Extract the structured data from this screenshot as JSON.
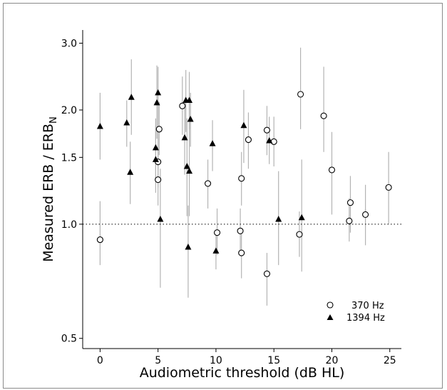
{
  "chart_data": {
    "type": "scatter",
    "xlabel": "Audiometric threshold (dB HL)",
    "ylabel": "Measured ERB / ERB",
    "ylabel_subscript": "N",
    "xlim": [
      -1.5,
      26
    ],
    "ylim": [
      0.47,
      3.25
    ],
    "y_scale": "log",
    "x_ticks": [
      0,
      5,
      10,
      15,
      20,
      25
    ],
    "y_ticks": [
      0.5,
      1.0,
      1.5,
      2.0,
      3.0
    ],
    "x_tick_labels": [
      "0",
      "5",
      "10",
      "15",
      "20",
      "25"
    ],
    "y_tick_labels": [
      "0.5",
      "1.0",
      "1.5",
      "2.0",
      "3.0"
    ],
    "reference_line": {
      "y": 1.0,
      "style": "dotted"
    },
    "legend_position": "lower-right",
    "series": [
      {
        "name": "370 Hz",
        "marker": "open-circle",
        "color": "#000000",
        "points": [
          {
            "x": 0.0,
            "y": 0.91,
            "lo": 0.78,
            "hi": 1.15
          },
          {
            "x": 5.0,
            "y": 1.46,
            "lo": 1.25,
            "hi": 1.75
          },
          {
            "x": 5.0,
            "y": 1.31,
            "lo": 1.12,
            "hi": 1.55
          },
          {
            "x": 5.1,
            "y": 1.78,
            "lo": 1.52,
            "hi": 2.1
          },
          {
            "x": 7.1,
            "y": 2.05,
            "lo": 1.72,
            "hi": 2.45
          },
          {
            "x": 9.3,
            "y": 1.28,
            "lo": 1.1,
            "hi": 1.48
          },
          {
            "x": 10.1,
            "y": 0.95,
            "lo": 0.83,
            "hi": 1.1
          },
          {
            "x": 12.1,
            "y": 0.96,
            "lo": 0.85,
            "hi": 1.1
          },
          {
            "x": 12.2,
            "y": 0.84,
            "lo": 0.72,
            "hi": 0.97
          },
          {
            "x": 12.2,
            "y": 1.32,
            "lo": 1.12,
            "hi": 1.55
          },
          {
            "x": 12.8,
            "y": 1.67,
            "lo": 1.4,
            "hi": 1.97
          },
          {
            "x": 14.4,
            "y": 1.77,
            "lo": 1.52,
            "hi": 2.05
          },
          {
            "x": 14.4,
            "y": 0.74,
            "lo": 0.61,
            "hi": 0.84
          },
          {
            "x": 15.0,
            "y": 1.65,
            "lo": 1.42,
            "hi": 1.92
          },
          {
            "x": 17.2,
            "y": 0.94,
            "lo": 0.82,
            "hi": 1.08
          },
          {
            "x": 17.3,
            "y": 2.2,
            "lo": 1.78,
            "hi": 2.92
          },
          {
            "x": 19.3,
            "y": 1.93,
            "lo": 1.55,
            "hi": 2.6
          },
          {
            "x": 20.0,
            "y": 1.39,
            "lo": 1.06,
            "hi": 1.75
          },
          {
            "x": 21.5,
            "y": 1.02,
            "lo": 0.9,
            "hi": 1.17
          },
          {
            "x": 21.6,
            "y": 1.14,
            "lo": 0.95,
            "hi": 1.34
          },
          {
            "x": 22.9,
            "y": 1.06,
            "lo": 0.88,
            "hi": 1.27
          },
          {
            "x": 24.9,
            "y": 1.25,
            "lo": 1.0,
            "hi": 1.55
          }
        ]
      },
      {
        "name": "1394 Hz",
        "marker": "filled-triangle",
        "color": "#000000",
        "points": [
          {
            "x": 0.0,
            "y": 1.81,
            "lo": 1.48,
            "hi": 2.22
          },
          {
            "x": 2.3,
            "y": 1.85,
            "lo": 1.6,
            "hi": 2.12
          },
          {
            "x": 2.6,
            "y": 1.37,
            "lo": 1.13,
            "hi": 1.65
          },
          {
            "x": 2.7,
            "y": 2.16,
            "lo": 1.72,
            "hi": 2.72
          },
          {
            "x": 4.8,
            "y": 1.59,
            "lo": 1.32,
            "hi": 1.9
          },
          {
            "x": 4.8,
            "y": 1.48,
            "lo": 1.21,
            "hi": 1.82
          },
          {
            "x": 4.9,
            "y": 2.09,
            "lo": 1.68,
            "hi": 2.62
          },
          {
            "x": 5.0,
            "y": 2.22,
            "lo": 1.8,
            "hi": 2.6
          },
          {
            "x": 5.2,
            "y": 1.03,
            "lo": 0.68,
            "hi": 1.4
          },
          {
            "x": 7.3,
            "y": 1.69,
            "lo": 1.35,
            "hi": 2.1
          },
          {
            "x": 7.4,
            "y": 2.12,
            "lo": 1.75,
            "hi": 2.55
          },
          {
            "x": 7.5,
            "y": 1.42,
            "lo": 1.05,
            "hi": 1.9
          },
          {
            "x": 7.6,
            "y": 0.87,
            "lo": 0.64,
            "hi": 1.12
          },
          {
            "x": 7.7,
            "y": 1.38,
            "lo": 1.05,
            "hi": 1.85
          },
          {
            "x": 7.7,
            "y": 2.12,
            "lo": 1.78,
            "hi": 2.52
          },
          {
            "x": 7.8,
            "y": 1.89,
            "lo": 1.6,
            "hi": 2.22
          },
          {
            "x": 9.7,
            "y": 1.63,
            "lo": 1.38,
            "hi": 1.88
          },
          {
            "x": 10.0,
            "y": 0.85,
            "lo": 0.76,
            "hi": 0.95
          },
          {
            "x": 12.4,
            "y": 1.82,
            "lo": 1.45,
            "hi": 2.26
          },
          {
            "x": 14.6,
            "y": 1.66,
            "lo": 1.44,
            "hi": 1.92
          },
          {
            "x": 15.4,
            "y": 1.03,
            "lo": 0.78,
            "hi": 1.38
          },
          {
            "x": 17.4,
            "y": 1.04,
            "lo": 0.75,
            "hi": 1.48
          }
        ]
      }
    ]
  }
}
